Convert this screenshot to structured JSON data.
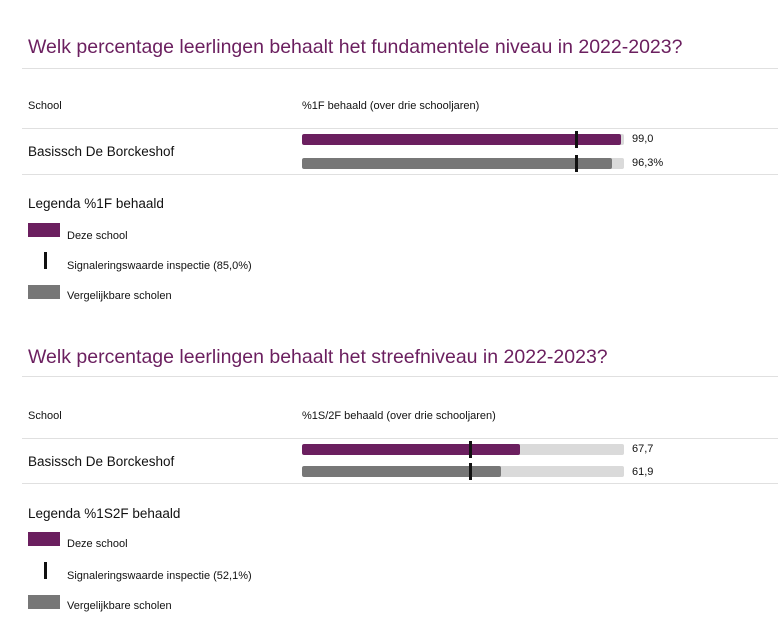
{
  "chart_data": [
    {
      "type": "bar",
      "title": "Welk percentage leerlingen behaalt het fundamentele niveau in 2022-2023?",
      "column_school": "School",
      "column_metric": "%1F behaald (over drie schooljaren)",
      "school": "Basissch De Borckeshof",
      "xlim": [
        0,
        100
      ],
      "series": [
        {
          "name": "Deze school",
          "value": 99.0,
          "label": "99,0"
        },
        {
          "name": "Vergelijkbare scholen",
          "value": 96.3,
          "label": "96,3%"
        }
      ],
      "threshold": 85.0,
      "legend": {
        "title": "Legenda %1F behaald",
        "school": "Deze school",
        "threshold": "Signaleringswaarde inspectie (85,0%)",
        "compare": "Vergelijkbare scholen"
      }
    },
    {
      "type": "bar",
      "title": "Welk percentage leerlingen behaalt het streefniveau in 2022-2023?",
      "column_school": "School",
      "column_metric": "%1S/2F behaald (over drie schooljaren)",
      "school": "Basissch De Borckeshof",
      "xlim": [
        0,
        100
      ],
      "series": [
        {
          "name": "Deze school",
          "value": 67.7,
          "label": "67,7"
        },
        {
          "name": "Vergelijkbare scholen",
          "value": 61.9,
          "label": "61,9"
        }
      ],
      "threshold": 52.1,
      "legend": {
        "title": "Legenda %1S2F behaald",
        "school": "Deze school",
        "threshold": "Signaleringswaarde inspectie (52,1%)",
        "compare": "Vergelijkbare scholen"
      }
    }
  ],
  "colors": {
    "school": "#6b1f5f",
    "compare": "#777777",
    "track": "#dadada",
    "marker": "#111111"
  }
}
